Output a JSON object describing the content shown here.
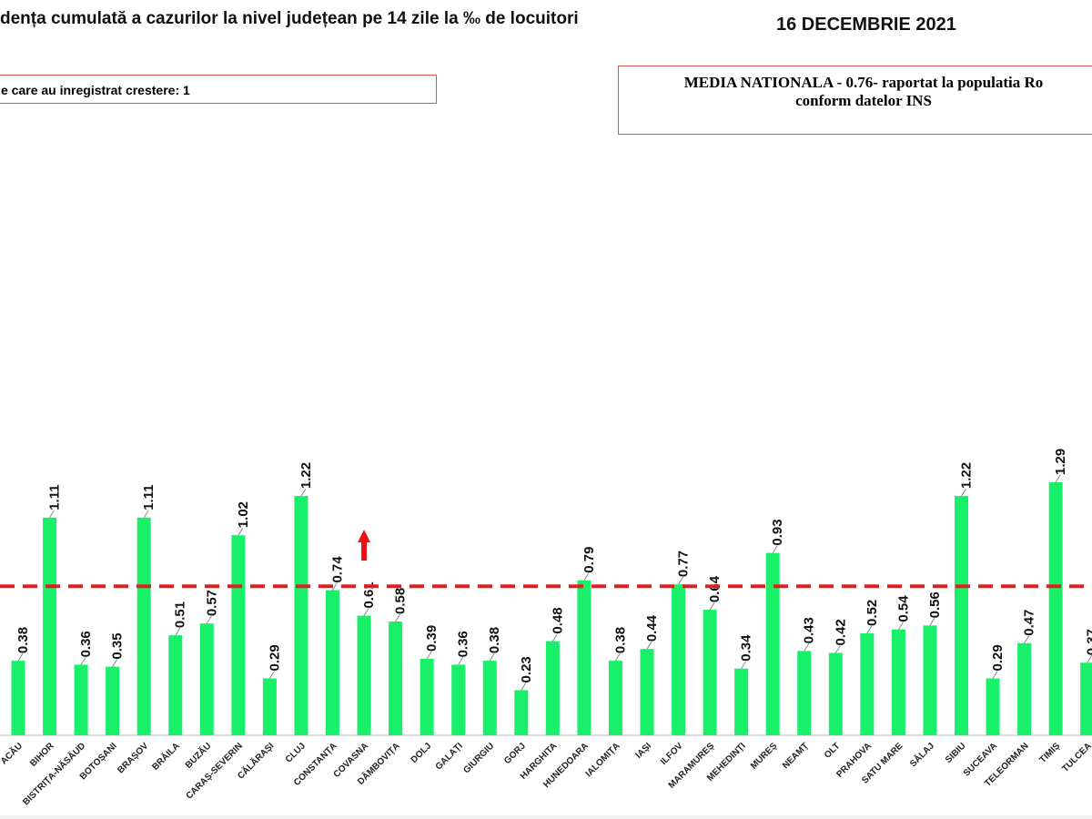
{
  "chart_data": {
    "type": "bar",
    "title": "dența cumulată a cazurilor la nivel județean pe 14 zile la ‰ de locuitori",
    "date": "16 DECEMBRIE 2021",
    "annotation_left": "e care au inregistrat crestere: 1",
    "annotation_right": [
      "MEDIA NATIONALA - 0.76-  raportat la populatia Ro",
      "conform datelor INS"
    ],
    "categories": [
      "ACĂU",
      "BIHOR",
      "BISTRIȚA-NĂSĂUD",
      "BOTOȘANI",
      "BRAȘOV",
      "BRĂILA",
      "BUZĂU",
      "CARAȘ-SEVERIN",
      "CĂLĂRAȘI",
      "CLUJ",
      "CONSTANȚA",
      "COVASNA",
      "DÂMBOVIȚA",
      "DOLJ",
      "GALAȚI",
      "GIURGIU",
      "GORJ",
      "HARGHITA",
      "HUNEDOARA",
      "IALOMIȚA",
      "IAȘI",
      "ILFOV",
      "MARAMUREȘ",
      "MEHEDINȚI",
      "MUREȘ",
      "NEAMȚ",
      "OLT",
      "PRAHOVA",
      "SATU MARE",
      "SĂLAJ",
      "SIBIU",
      "SUCEAVA",
      "TELEORMAN",
      "TIMIȘ",
      "TULCEA"
    ],
    "values": [
      0.38,
      1.11,
      0.36,
      0.35,
      1.11,
      0.51,
      0.57,
      1.02,
      0.29,
      1.22,
      0.74,
      0.61,
      0.58,
      0.39,
      0.36,
      0.38,
      0.23,
      0.48,
      0.79,
      0.38,
      0.44,
      0.77,
      0.64,
      0.34,
      0.93,
      0.43,
      0.42,
      0.52,
      0.54,
      0.56,
      1.22,
      0.29,
      0.47,
      1.29,
      0.37
    ],
    "labels": [
      "0.38",
      "1.11",
      "0.36",
      "0.35",
      "1.11",
      "0.51",
      "0.57",
      "1.02",
      "0.29",
      "1.22",
      "0.74",
      "0.61",
      "0.58",
      "0.39",
      "0.36",
      "0.38",
      "0.23",
      "0.48",
      "0.79",
      "0.38",
      "0.44",
      "0.77",
      "0.64",
      "0.34",
      "0.93",
      "0.43",
      "0.42",
      "0.52",
      "0.54",
      "0.56",
      "1.22",
      "0.29",
      "0.47",
      "1.29",
      "0.37"
    ],
    "reference_line": {
      "value": 0.76,
      "style": "dashed",
      "color": "#e02020"
    },
    "increase_marker": {
      "category": "COVASNA",
      "icon": "up-arrow",
      "color": "#ee1111"
    },
    "bar_color": "#19f06a",
    "ylim": [
      0,
      1.4
    ],
    "grid": false
  }
}
